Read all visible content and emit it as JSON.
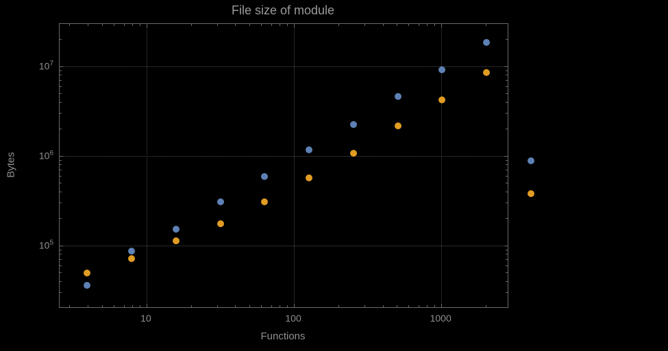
{
  "page": {
    "background": "#000000"
  },
  "chart_data": {
    "type": "scatter",
    "title": "File size of module",
    "xlabel": "Functions",
    "ylabel": "Bytes",
    "x_scale": "log",
    "y_scale": "log",
    "grid": "dotted",
    "legend": "none",
    "x_range_log10": [
      0.41,
      3.45
    ],
    "y_range_log10": [
      4.31,
      7.47
    ],
    "x_gridlines": [
      10,
      100,
      1000
    ],
    "y_gridlines": [
      100000,
      1000000,
      10000000
    ],
    "x_tick_labels": [
      {
        "value": 10,
        "label": "10"
      },
      {
        "value": 100,
        "label": "100"
      },
      {
        "value": 1000,
        "label": "1000"
      }
    ],
    "y_tick_labels": [
      {
        "value": 100000,
        "base": "10",
        "exp": "5"
      },
      {
        "value": 1000000,
        "base": "10",
        "exp": "6"
      },
      {
        "value": 10000000,
        "base": "10",
        "exp": "7"
      }
    ],
    "x": [
      4,
      8,
      16,
      32,
      64,
      128,
      256,
      512,
      1024,
      2048,
      4096
    ],
    "series": [
      {
        "name": "blue",
        "color": "#5e81b5",
        "values": [
          35000,
          85000,
          150000,
          300000,
          580000,
          1150000,
          2200000,
          4500000,
          9000000,
          18000000,
          870000
        ]
      },
      {
        "name": "orange",
        "color": "#e19c24",
        "values": [
          48000,
          70000,
          110000,
          170000,
          300000,
          560000,
          1050000,
          2100000,
          4100000,
          8300000,
          370000
        ]
      }
    ]
  }
}
